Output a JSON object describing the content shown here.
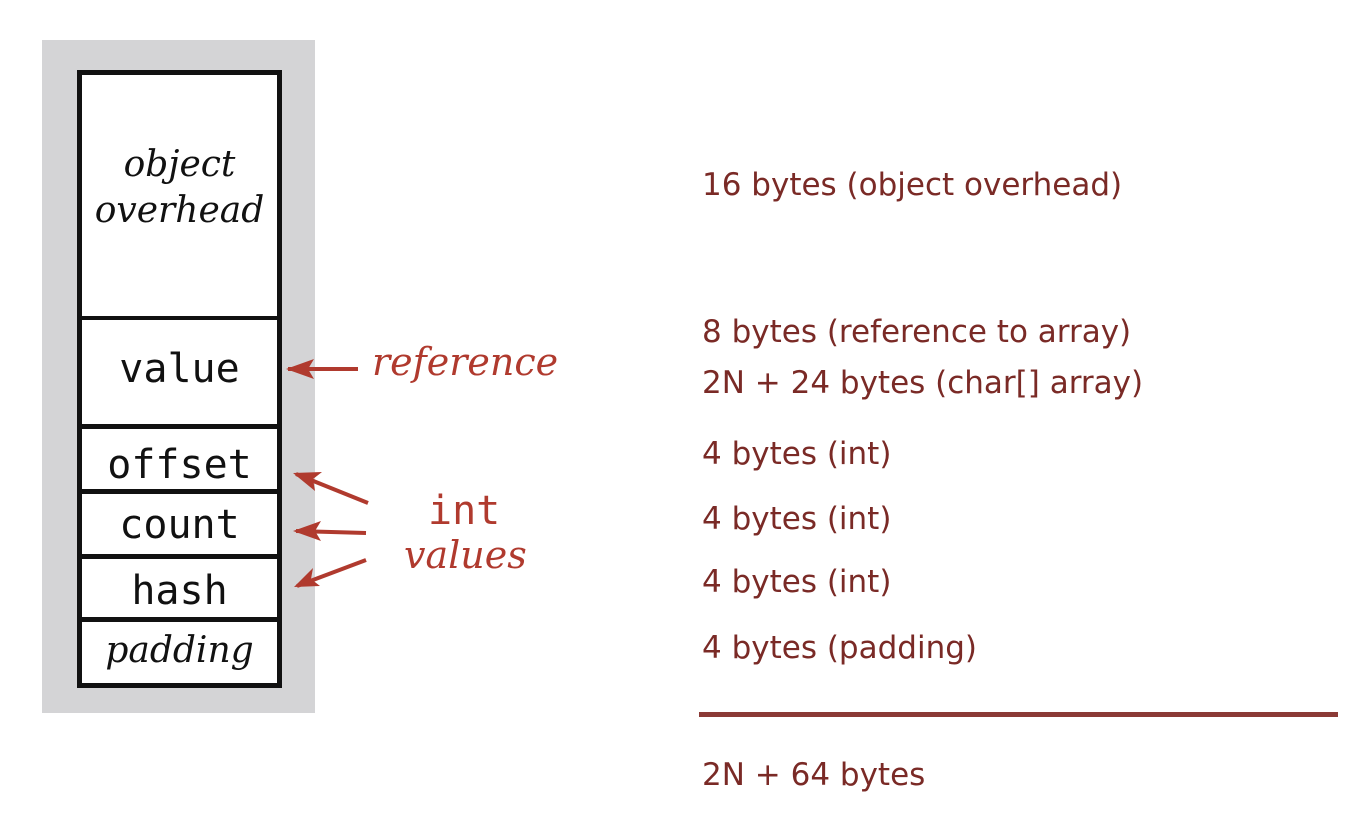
{
  "object_layout": {
    "overhead_label_line1": "object",
    "overhead_label_line2": "overhead",
    "fields": [
      "value",
      "offset",
      "count",
      "hash"
    ],
    "padding_label": "padding"
  },
  "annotations": {
    "reference_label": "reference",
    "int_label_code": "int",
    "int_label_text": "values"
  },
  "sizes": {
    "overhead": "16 bytes (object overhead)",
    "reference": "8 bytes (reference to array)",
    "char_array": "2N + 24 bytes (char[] array)",
    "int_offset": "4 bytes (int)",
    "int_count": "4 bytes (int)",
    "int_hash": "4 bytes (int)",
    "padding": "4 bytes (padding)",
    "total": "2N + 64 bytes"
  },
  "colors": {
    "annotation": "#b03a2e",
    "size_text": "#7a2a26",
    "background_panel": "#d4d4d6"
  }
}
